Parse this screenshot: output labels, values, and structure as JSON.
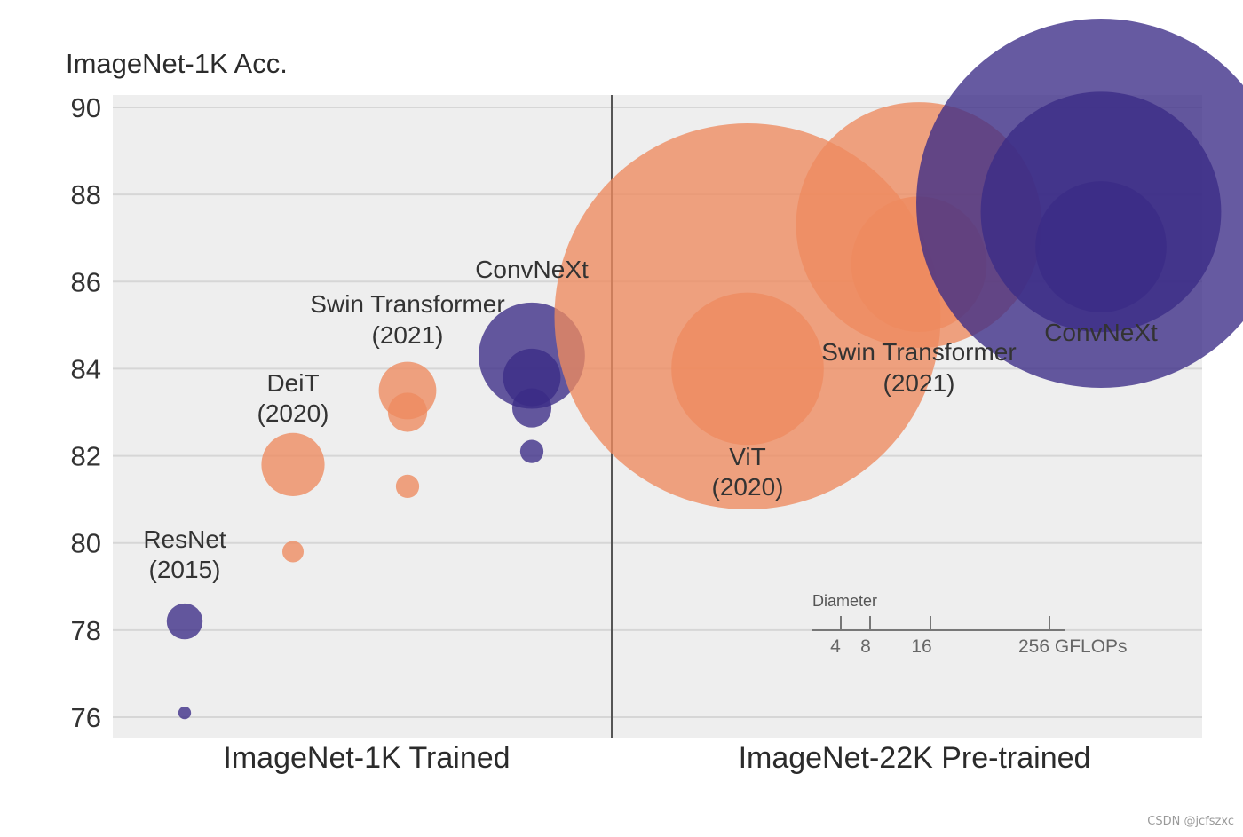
{
  "chart_data": {
    "type": "scatter",
    "ylabel": "ImageNet-1K Acc.",
    "ylim": [
      75.5,
      90.2
    ],
    "yticks": [
      76,
      78,
      80,
      82,
      84,
      86,
      88,
      90
    ],
    "grid": true,
    "colors": {
      "ConvNeXt": "#3b2b86",
      "Transformer": "#ee8a5f",
      "panel": "#eeeeee"
    },
    "sections": [
      {
        "label": "ImageNet-1K Trained",
        "groups": [
          {
            "name": "ResNet",
            "year": "(2015)",
            "family": "ConvNeXt",
            "points": [
              {
                "acc": 78.2,
                "gflops": 8
              },
              {
                "acc": 76.1,
                "gflops": 2
              }
            ]
          },
          {
            "name": "DeiT",
            "year": "(2020)",
            "family": "Transformer",
            "points": [
              {
                "acc": 81.8,
                "gflops": 17
              },
              {
                "acc": 79.8,
                "gflops": 4
              }
            ]
          },
          {
            "name": "Swin Transformer",
            "year": "(2021)",
            "family": "Transformer",
            "points": [
              {
                "acc": 83.5,
                "gflops": 15
              },
              {
                "acc": 83.0,
                "gflops": 9
              },
              {
                "acc": 81.3,
                "gflops": 4.5
              }
            ]
          },
          {
            "name": "ConvNeXt",
            "year": "",
            "family": "ConvNeXt",
            "points": [
              {
                "acc": 84.3,
                "gflops": 34
              },
              {
                "acc": 83.8,
                "gflops": 15
              },
              {
                "acc": 83.1,
                "gflops": 9
              },
              {
                "acc": 82.1,
                "gflops": 4.5
              }
            ]
          }
        ]
      },
      {
        "label": "ImageNet-22K Pre-trained",
        "groups": [
          {
            "name": "ViT",
            "year": "(2020)",
            "family": "Transformer",
            "points": [
              {
                "acc": 85.2,
                "gflops": 190
              },
              {
                "acc": 84.0,
                "gflops": 55
              }
            ]
          },
          {
            "name": "Swin Transformer",
            "year": "(2021)",
            "family": "Transformer",
            "points": [
              {
                "acc": 87.3,
                "gflops": 104
              },
              {
                "acc": 86.4,
                "gflops": 47
              }
            ]
          },
          {
            "name": "ConvNeXt",
            "year": "",
            "family": "ConvNeXt",
            "points": [
              {
                "acc": 87.8,
                "gflops": 179
              },
              {
                "acc": 87.6,
                "gflops": 101
              },
              {
                "acc": 86.8,
                "gflops": 45
              }
            ]
          }
        ]
      }
    ],
    "size_legend": {
      "title": "Diameter",
      "ticks": [
        "4",
        "8",
        "16",
        "256 GFLOPs"
      ]
    }
  },
  "watermark": "CSDN @jcfszxc"
}
